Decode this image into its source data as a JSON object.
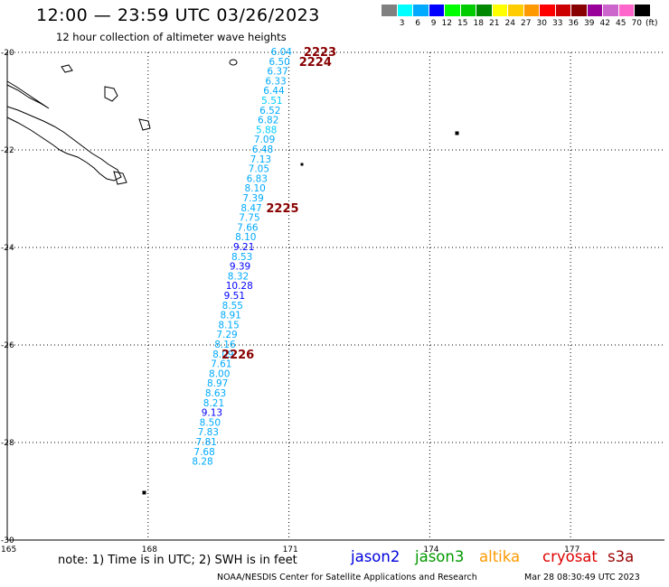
{
  "title": "12:00 — 23:59 UTC 03/26/2023",
  "subtitle": "12 hour collection of altimeter wave heights",
  "legend": {
    "colors": [
      "#808080",
      "#00ffff",
      "#00aaff",
      "#0000ff",
      "#00ff00",
      "#00cc00",
      "#008800",
      "#ffff00",
      "#ffcc00",
      "#ff9900",
      "#ff0000",
      "#cc0000",
      "#880000",
      "#990099",
      "#cc66cc",
      "#ff66cc",
      "#000000"
    ],
    "labels": [
      "3",
      "6",
      "9",
      "12",
      "15",
      "18",
      "21",
      "24",
      "27",
      "30",
      "33",
      "36",
      "39",
      "42",
      "45",
      "70"
    ],
    "unit": "(ft)"
  },
  "map": {
    "lat_labels": [
      "-20",
      "-22",
      "-24",
      "-26",
      "-28",
      "-30"
    ],
    "lon_labels": [
      "165",
      "168",
      "171",
      "174",
      "177"
    ]
  },
  "chart_data": {
    "type": "scatter",
    "lon_range": [
      165,
      179
    ],
    "lat_range": [
      -30,
      -20
    ],
    "points": [
      {
        "lat": -20.0,
        "lon": 171.0,
        "v": "6.04",
        "c": "#00aaff"
      },
      {
        "lat": -20.2,
        "lon": 170.96,
        "v": "6.50",
        "c": "#00aaff"
      },
      {
        "lat": -20.4,
        "lon": 170.92,
        "v": "6.37",
        "c": "#00aaff"
      },
      {
        "lat": -20.6,
        "lon": 170.88,
        "v": "6.33",
        "c": "#00aaff"
      },
      {
        "lat": -20.8,
        "lon": 170.84,
        "v": "6.44",
        "c": "#00aaff"
      },
      {
        "lat": -21.0,
        "lon": 170.8,
        "v": "5.51",
        "c": "#00ccff"
      },
      {
        "lat": -21.2,
        "lon": 170.76,
        "v": "6.52",
        "c": "#00aaff"
      },
      {
        "lat": -21.4,
        "lon": 170.72,
        "v": "6.82",
        "c": "#00aaff"
      },
      {
        "lat": -21.6,
        "lon": 170.68,
        "v": "5.88",
        "c": "#00ccff"
      },
      {
        "lat": -21.8,
        "lon": 170.64,
        "v": "7.09",
        "c": "#00aaff"
      },
      {
        "lat": -22.0,
        "lon": 170.6,
        "v": "6.48",
        "c": "#00aaff"
      },
      {
        "lat": -22.2,
        "lon": 170.56,
        "v": "7.13",
        "c": "#00aaff"
      },
      {
        "lat": -22.4,
        "lon": 170.52,
        "v": "7.05",
        "c": "#00aaff"
      },
      {
        "lat": -22.6,
        "lon": 170.48,
        "v": "6.83",
        "c": "#00aaff"
      },
      {
        "lat": -22.8,
        "lon": 170.44,
        "v": "8.10",
        "c": "#00aaff"
      },
      {
        "lat": -23.0,
        "lon": 170.4,
        "v": "7.39",
        "c": "#00aaff"
      },
      {
        "lat": -23.2,
        "lon": 170.36,
        "v": "8.47",
        "c": "#00aaff"
      },
      {
        "lat": -23.4,
        "lon": 170.32,
        "v": "7.75",
        "c": "#00aaff"
      },
      {
        "lat": -23.6,
        "lon": 170.28,
        "v": "7.66",
        "c": "#00aaff"
      },
      {
        "lat": -23.8,
        "lon": 170.24,
        "v": "8.10",
        "c": "#00aaff"
      },
      {
        "lat": -24.0,
        "lon": 170.2,
        "v": "9.21",
        "c": "#0000ff"
      },
      {
        "lat": -24.2,
        "lon": 170.16,
        "v": "8.53",
        "c": "#00aaff"
      },
      {
        "lat": -24.4,
        "lon": 170.12,
        "v": "9.39",
        "c": "#0000ff"
      },
      {
        "lat": -24.6,
        "lon": 170.08,
        "v": "8.32",
        "c": "#00aaff"
      },
      {
        "lat": -24.8,
        "lon": 170.04,
        "v": "10.28",
        "c": "#0000ff"
      },
      {
        "lat": -25.0,
        "lon": 170.0,
        "v": "9.51",
        "c": "#0000ff"
      },
      {
        "lat": -25.2,
        "lon": 169.96,
        "v": "8.55",
        "c": "#00aaff"
      },
      {
        "lat": -25.4,
        "lon": 169.92,
        "v": "8.91",
        "c": "#00aaff"
      },
      {
        "lat": -25.6,
        "lon": 169.88,
        "v": "8.15",
        "c": "#00aaff"
      },
      {
        "lat": -25.8,
        "lon": 169.84,
        "v": "7.29",
        "c": "#00aaff"
      },
      {
        "lat": -26.0,
        "lon": 169.8,
        "v": "8.16",
        "c": "#00aaff"
      },
      {
        "lat": -26.2,
        "lon": 169.76,
        "v": "8.09",
        "c": "#00aaff"
      },
      {
        "lat": -26.4,
        "lon": 169.72,
        "v": "7.61",
        "c": "#00aaff"
      },
      {
        "lat": -26.6,
        "lon": 169.68,
        "v": "8.00",
        "c": "#00aaff"
      },
      {
        "lat": -26.8,
        "lon": 169.64,
        "v": "8.97",
        "c": "#00aaff"
      },
      {
        "lat": -27.0,
        "lon": 169.6,
        "v": "8.63",
        "c": "#00aaff"
      },
      {
        "lat": -27.2,
        "lon": 169.56,
        "v": "8.21",
        "c": "#00aaff"
      },
      {
        "lat": -27.4,
        "lon": 169.52,
        "v": "9.13",
        "c": "#0000ff"
      },
      {
        "lat": -27.6,
        "lon": 169.48,
        "v": "8.50",
        "c": "#00aaff"
      },
      {
        "lat": -27.8,
        "lon": 169.44,
        "v": "7.83",
        "c": "#00aaff"
      },
      {
        "lat": -28.0,
        "lon": 169.4,
        "v": "7.81",
        "c": "#00aaff"
      },
      {
        "lat": -28.2,
        "lon": 169.36,
        "v": "7.68",
        "c": "#00aaff"
      },
      {
        "lat": -28.4,
        "lon": 169.32,
        "v": "8.28",
        "c": "#00aaff"
      }
    ],
    "time_labels": [
      {
        "text": "2223",
        "lat": -20.0,
        "lon": 171.7
      },
      {
        "text": "2224",
        "lat": -20.2,
        "lon": 171.6
      },
      {
        "text": "2225",
        "lat": -23.2,
        "lon": 170.9
      },
      {
        "text": "2226",
        "lat": -26.2,
        "lon": 169.95
      }
    ]
  },
  "note": "note:  1) Time is in UTC;  2) SWH is in feet",
  "satellites": [
    {
      "name": "jason2",
      "color": "#0000dd"
    },
    {
      "name": "jason3",
      "color": "#009900"
    },
    {
      "name": "altika",
      "color": "#ff9900"
    },
    {
      "name": "cryosat",
      "color": "#dd0000"
    },
    {
      "name": "s3a",
      "color": "#990000"
    }
  ],
  "footer": "NOAA/NESDIS Center for Satellite Applications and Research",
  "footer_time": "Mar 28 08:30:49 UTC 2023"
}
